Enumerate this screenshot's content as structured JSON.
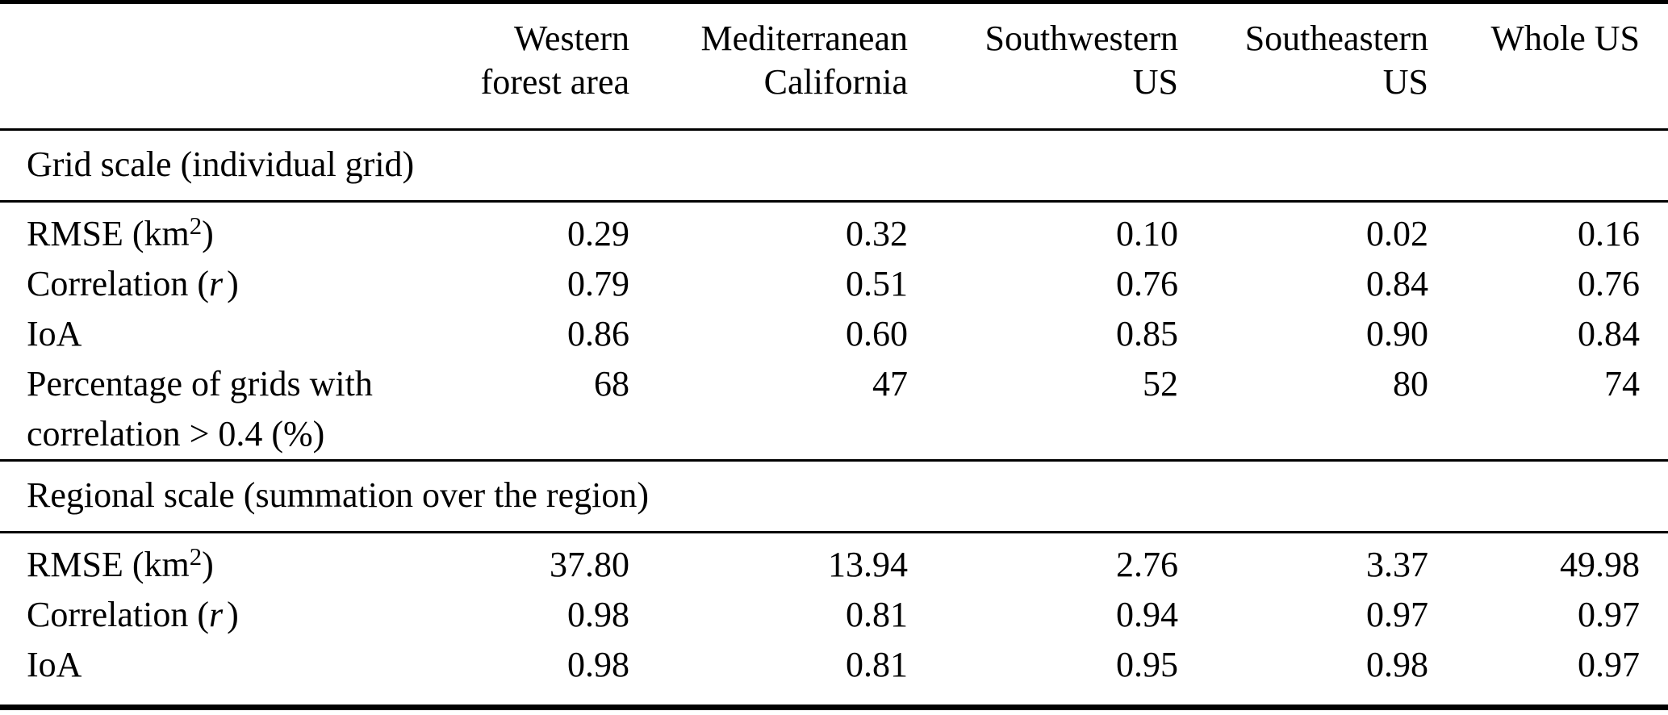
{
  "page": {
    "background": "#ffffff",
    "text_color": "#000000",
    "rule_color": "#000000"
  },
  "table": {
    "columns": [
      {
        "line1": "Western",
        "line2": "forest area"
      },
      {
        "line1": "Mediterranean",
        "line2": "California"
      },
      {
        "line1": "Southwestern",
        "line2": "US"
      },
      {
        "line1": "Southeastern",
        "line2": "US"
      },
      {
        "line1": "Whole US",
        "line2": ""
      }
    ],
    "sections": [
      {
        "title": "Grid scale (individual grid)",
        "rows": [
          {
            "label": {
              "pre": "RMSE (km",
              "sup": "2",
              "post": ")"
            },
            "values": [
              "0.29",
              "0.32",
              "0.10",
              "0.02",
              "0.16"
            ]
          },
          {
            "label": {
              "pre": "Correlation (",
              "it": "r",
              "post": ")"
            },
            "values": [
              "0.79",
              "0.51",
              "0.76",
              "0.84",
              "0.76"
            ]
          },
          {
            "label": {
              "pre": "IoA"
            },
            "values": [
              "0.86",
              "0.60",
              "0.85",
              "0.90",
              "0.84"
            ]
          },
          {
            "label": {
              "pre": "Percentage of grids with",
              "line2": "correlation > 0.4 (%)"
            },
            "values": [
              "68",
              "47",
              "52",
              "80",
              "74"
            ]
          }
        ]
      },
      {
        "title": "Regional scale (summation over the region)",
        "rows": [
          {
            "label": {
              "pre": "RMSE (km",
              "sup": "2",
              "post": ")"
            },
            "values": [
              "37.80",
              "13.94",
              "2.76",
              "3.37",
              "49.98"
            ]
          },
          {
            "label": {
              "pre": "Correlation (",
              "it": "r",
              "post": ")"
            },
            "values": [
              "0.98",
              "0.81",
              "0.94",
              "0.97",
              "0.97"
            ]
          },
          {
            "label": {
              "pre": "IoA"
            },
            "values": [
              "0.98",
              "0.81",
              "0.95",
              "0.98",
              "0.97"
            ]
          }
        ]
      }
    ]
  }
}
